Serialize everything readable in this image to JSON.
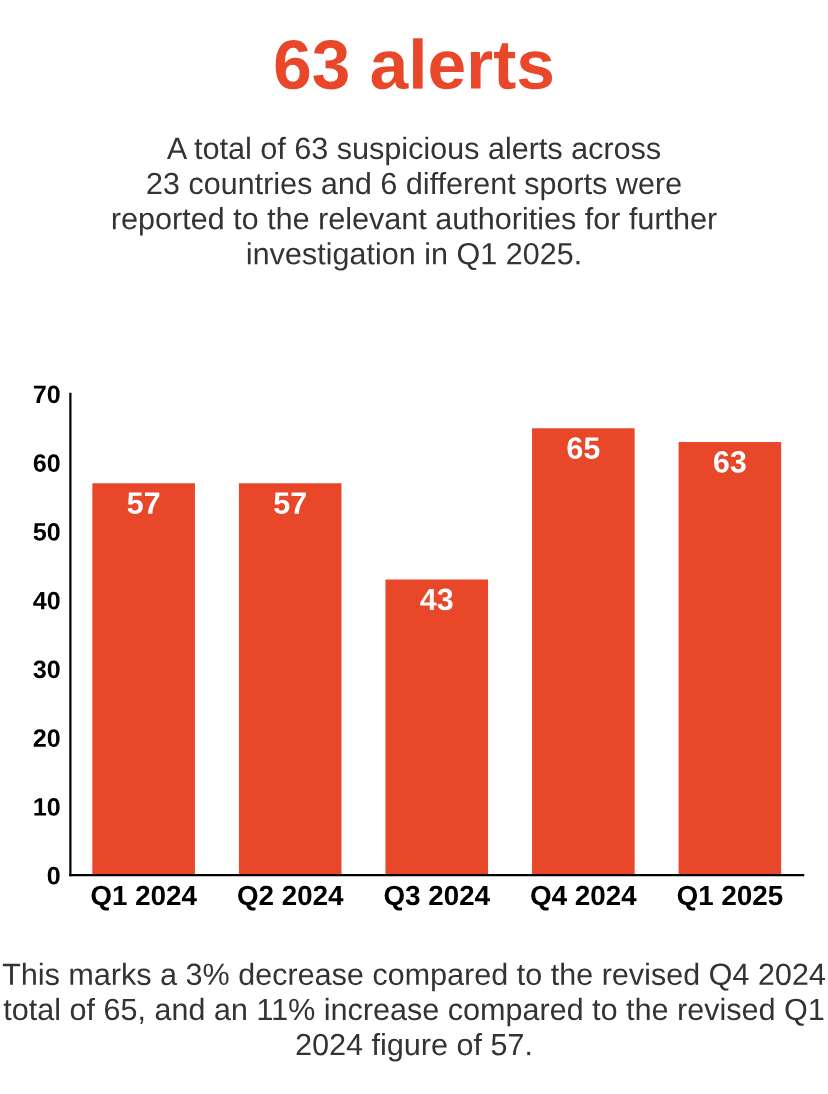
{
  "chart_data": {
    "type": "bar",
    "title": "63 alerts",
    "subtitle": "A total of 63 suspicious alerts across\n23 countries and 6 different sports were\nreported to the relevant authorities for further\ninvestigation in Q1 2025.",
    "categories": [
      "Q1 2024",
      "Q2 2024",
      "Q3 2024",
      "Q4 2024",
      "Q1 2025"
    ],
    "values": [
      57,
      57,
      43,
      65,
      63
    ],
    "color": "#e8472a",
    "ylim": [
      0,
      70
    ],
    "yticks": [
      0,
      10,
      20,
      30,
      40,
      50,
      60,
      70
    ],
    "grid": false,
    "data_labels": true,
    "annotations": [
      "This marks a 3% decrease compared to the revised Q4 2024 total of 65, and an 11% increase compared to the revised Q1 2024 figure of 57."
    ]
  }
}
